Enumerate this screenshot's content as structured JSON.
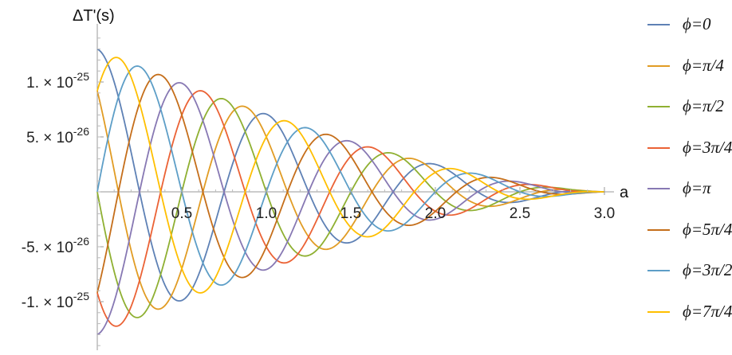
{
  "chart_data": {
    "type": "line",
    "xlabel": "a",
    "ylabel": "ΔT'(s)",
    "xlim": [
      0,
      3
    ],
    "ylim": [
      -1.45e-25,
      1.4e-25
    ],
    "x_ticks": [
      {
        "value": 0.5,
        "label": "0.5"
      },
      {
        "value": 1.0,
        "label": "1.0"
      },
      {
        "value": 1.5,
        "label": "1.5"
      },
      {
        "value": 2.0,
        "label": "2.0"
      },
      {
        "value": 2.5,
        "label": "2.5"
      },
      {
        "value": 3.0,
        "label": "3.0"
      }
    ],
    "y_ticks": [
      {
        "value": 1e-25,
        "mantissa": "1.",
        "exp": "-25"
      },
      {
        "value": 5e-26,
        "mantissa": "5.",
        "exp": "-26"
      },
      {
        "value": -5e-26,
        "mantissa": "-5.",
        "exp": "-26"
      },
      {
        "value": -1e-25,
        "mantissa": "-1.",
        "exp": "-25"
      }
    ],
    "grid": false,
    "legend_position": "right",
    "amplitude_model": "1.3e-25 * (1 - a/3)^1.5",
    "series": [
      {
        "name": "ϕ=0",
        "phase_text": "0",
        "color": "#5e81b5",
        "phase": 0.0
      },
      {
        "name": "ϕ=π/4",
        "phase_text": "π/4",
        "color": "#e19c24",
        "phase": 0.7854
      },
      {
        "name": "ϕ=π/2",
        "phase_text": "π/2",
        "color": "#8fb032",
        "phase": 1.5708
      },
      {
        "name": "ϕ=3π/4",
        "phase_text": "3π/4",
        "color": "#eb6235",
        "phase": 2.3562
      },
      {
        "name": "ϕ=π",
        "phase_text": "π",
        "color": "#8778b3",
        "phase": 3.1416
      },
      {
        "name": "ϕ=5π/4",
        "phase_text": "5π/4",
        "color": "#c56e1a",
        "phase": 3.927
      },
      {
        "name": "ϕ=3π/2",
        "phase_text": "3π/2",
        "color": "#5d9ec7",
        "phase": 4.7124
      },
      {
        "name": "ϕ=7π/4",
        "phase_text": "7π/4",
        "color": "#ffbf00",
        "phase": 5.4978
      }
    ]
  }
}
